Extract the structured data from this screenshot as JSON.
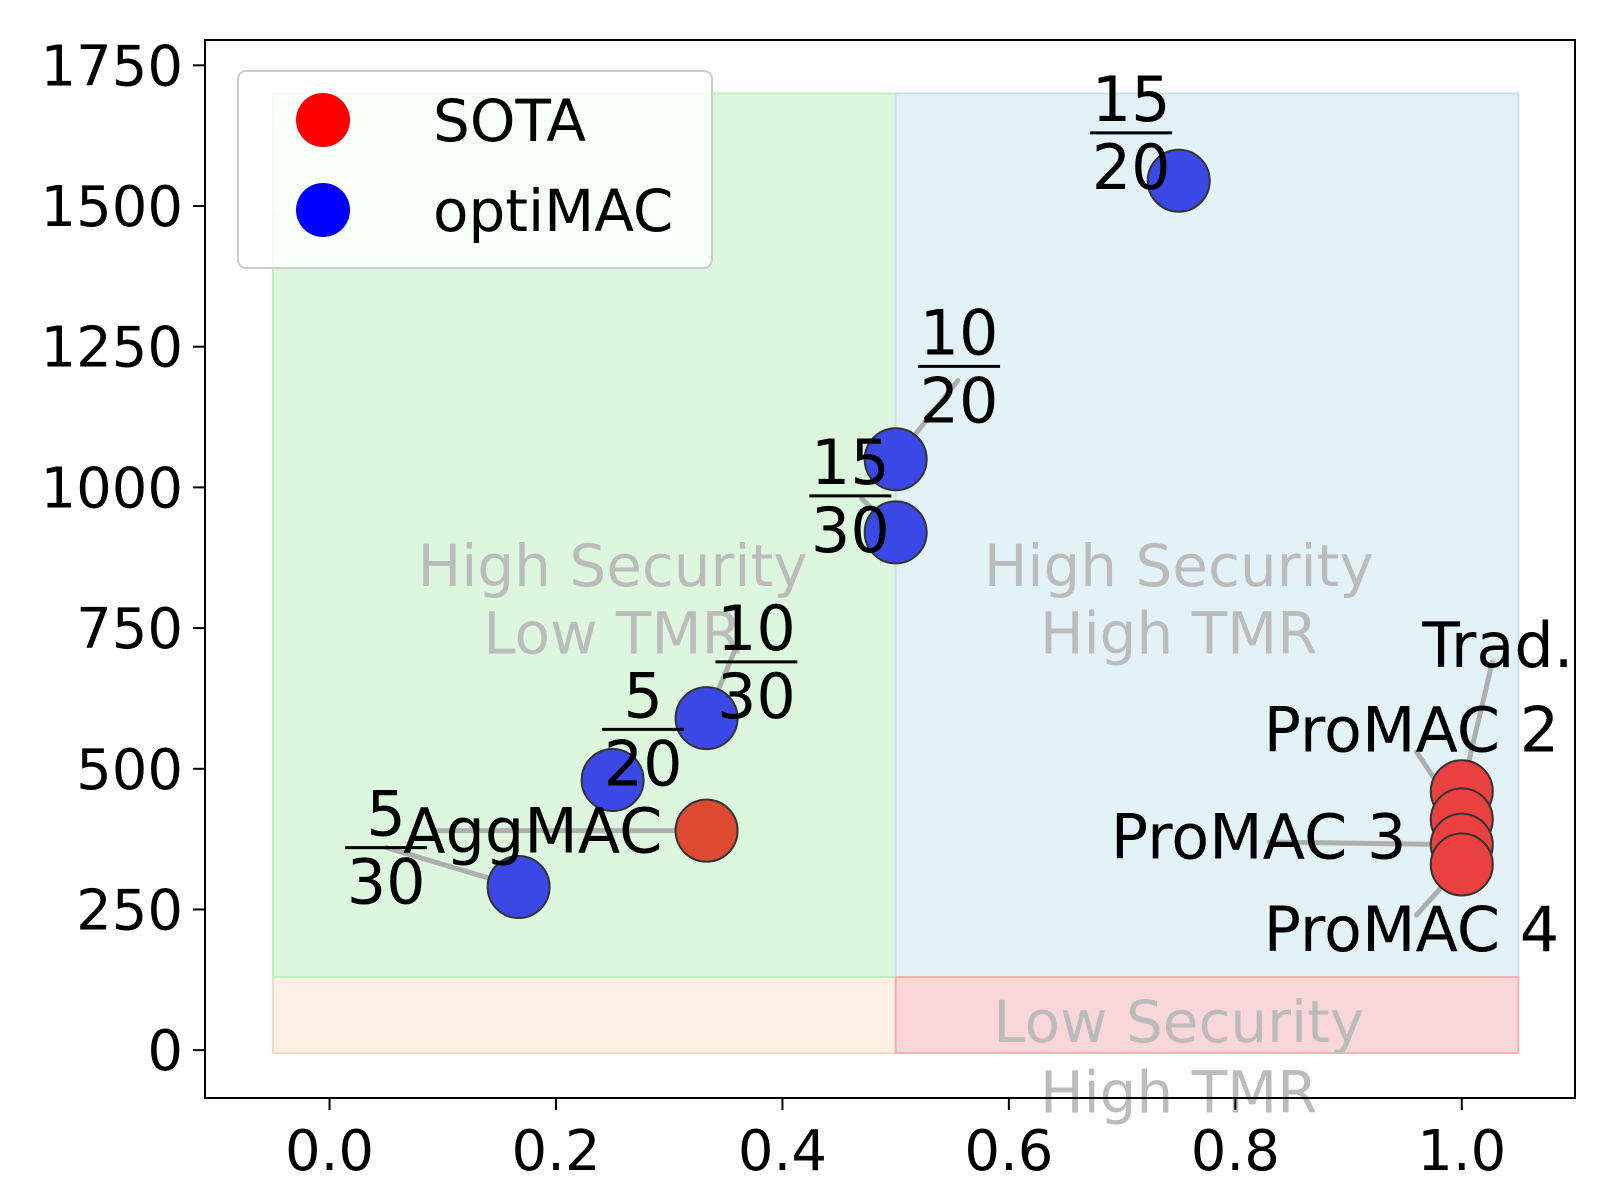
{
  "chart_data": {
    "type": "scatter",
    "xlim": [
      -0.11,
      1.1
    ],
    "ylim": [
      -85,
      1795
    ],
    "x_ticks": [
      "0.0",
      "0.2",
      "0.4",
      "0.6",
      "0.8",
      "1.0"
    ],
    "x_tick_values": [
      0.0,
      0.2,
      0.4,
      0.6,
      0.8,
      1.0
    ],
    "y_ticks": [
      "0",
      "250",
      "500",
      "750",
      "1000",
      "1250",
      "1500",
      "1750"
    ],
    "y_tick_values": [
      0,
      250,
      500,
      750,
      1000,
      1250,
      1500,
      1750
    ],
    "grid": false,
    "legend": {
      "position": "top-left",
      "entries": [
        {
          "label": "SOTA",
          "color": "#ff0000"
        },
        {
          "label": "optiMAC",
          "color": "#0000ff"
        }
      ]
    },
    "colors": {
      "sota_point": "#e8413f",
      "sota_aggmac_point": "#dd4a2f",
      "optimac_point": "#3a49e6",
      "low_security_low_tmr": "#fdefe3",
      "high_security_low_tmr": "#dcf7dd",
      "high_security_high_tmr": "#e3f2f6",
      "low_security_high_tmr": "#f9d7d8",
      "region_text": "#bcbcbc",
      "leader_line": "#a9a9a9"
    },
    "regions": [
      {
        "name": "low-security-low-tmr",
        "x": [
          -0.05,
          0.5
        ],
        "y": [
          -5,
          130
        ],
        "label": ""
      },
      {
        "name": "high-security-low-tmr",
        "x": [
          -0.05,
          0.5
        ],
        "y": [
          130,
          1700
        ],
        "label": [
          "High Security",
          "Low TMR"
        ],
        "label_at": [
          0.25,
          860,
          740
        ]
      },
      {
        "name": "high-security-high-tmr",
        "x": [
          0.5,
          1.05
        ],
        "y": [
          130,
          1700
        ],
        "label": [
          "High Security",
          "High TMR"
        ],
        "label_at": [
          0.75,
          860,
          740
        ]
      },
      {
        "name": "low-security-high-tmr",
        "x": [
          0.5,
          1.05
        ],
        "y": [
          -5,
          130
        ],
        "label": [
          "Low Security",
          "High TMR"
        ],
        "label_at": [
          0.75,
          50,
          -75
        ]
      }
    ],
    "series": [
      {
        "name": "SOTA",
        "points": [
          {
            "x": 0.333,
            "y": 390,
            "label": "AggMAC",
            "label_at": [
              0.065,
              390
            ],
            "align": "start"
          },
          {
            "x": 1.0,
            "y": 460,
            "label": "Trad.",
            "label_at": [
              0.965,
              720
            ],
            "align": "start",
            "line_to": [
              1.027,
              690
            ]
          },
          {
            "x": 1.0,
            "y": 410,
            "label": "ProMAC 2",
            "label_at": [
              0.825,
              570
            ],
            "align": "start",
            "line_to": [
              0.96,
              530
            ]
          },
          {
            "x": 1.0,
            "y": 365,
            "label": "ProMAC 3",
            "label_at": [
              0.69,
              380
            ],
            "align": "start",
            "line_to": [
              0.83,
              370
            ]
          },
          {
            "x": 1.0,
            "y": 330,
            "label": "ProMAC 4",
            "label_at": [
              0.825,
              215
            ],
            "align": "start",
            "line_to": [
              0.96,
              240
            ]
          }
        ]
      },
      {
        "name": "optiMAC",
        "points": [
          {
            "x": 0.167,
            "y": 290,
            "label": [
              "5",
              "30"
            ],
            "label_at": [
              0.05,
              360
            ],
            "line_to": [
              0.05,
              360
            ]
          },
          {
            "x": 0.25,
            "y": 480,
            "label": [
              "5",
              "20"
            ],
            "label_at": [
              0.277,
              570
            ],
            "line_to": [
              0.25,
              480
            ]
          },
          {
            "x": 0.333,
            "y": 590,
            "label": [
              "10",
              "30"
            ],
            "label_at": [
              0.377,
              690
            ],
            "line_to": [
              0.36,
              720
            ]
          },
          {
            "x": 0.5,
            "y": 920,
            "label": [
              "15",
              "30"
            ],
            "label_at": [
              0.46,
              985
            ],
            "line_to": [
              0.47,
              980
            ]
          },
          {
            "x": 0.5,
            "y": 1050,
            "label": [
              "10",
              "20"
            ],
            "label_at": [
              0.556,
              1215
            ],
            "line_to": [
              0.555,
              1190
            ]
          },
          {
            "x": 0.75,
            "y": 1545,
            "label": [
              "15",
              "20"
            ],
            "label_at": [
              0.708,
              1630
            ],
            "line_to": [
              0.75,
              1545
            ]
          }
        ]
      }
    ]
  }
}
